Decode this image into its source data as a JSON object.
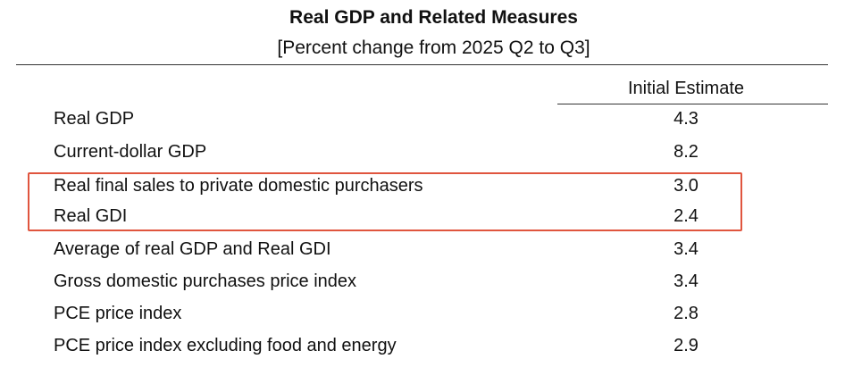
{
  "table": {
    "title": "Real GDP and Related Measures",
    "subtitle": "[Percent change from 2025 Q2 to Q3]",
    "column_header": "Initial Estimate",
    "highlight_color": "#e0553e",
    "highlighted_rows": [
      "Real final sales to private domestic purchasers",
      "Real GDI"
    ],
    "rows": [
      {
        "label": "Real GDP",
        "value": "4.3"
      },
      {
        "label": "Current-dollar GDP",
        "value": "8.2"
      },
      {
        "label": "Real final sales to private domestic purchasers",
        "value": "3.0"
      },
      {
        "label": "Real GDI",
        "value": "2.4"
      },
      {
        "label": "Average of real GDP and Real GDI",
        "value": "3.4"
      },
      {
        "label": "Gross domestic purchases price index",
        "value": "3.4"
      },
      {
        "label": "PCE price index",
        "value": "2.8"
      },
      {
        "label": "PCE price index excluding food and energy",
        "value": "2.9"
      }
    ]
  }
}
